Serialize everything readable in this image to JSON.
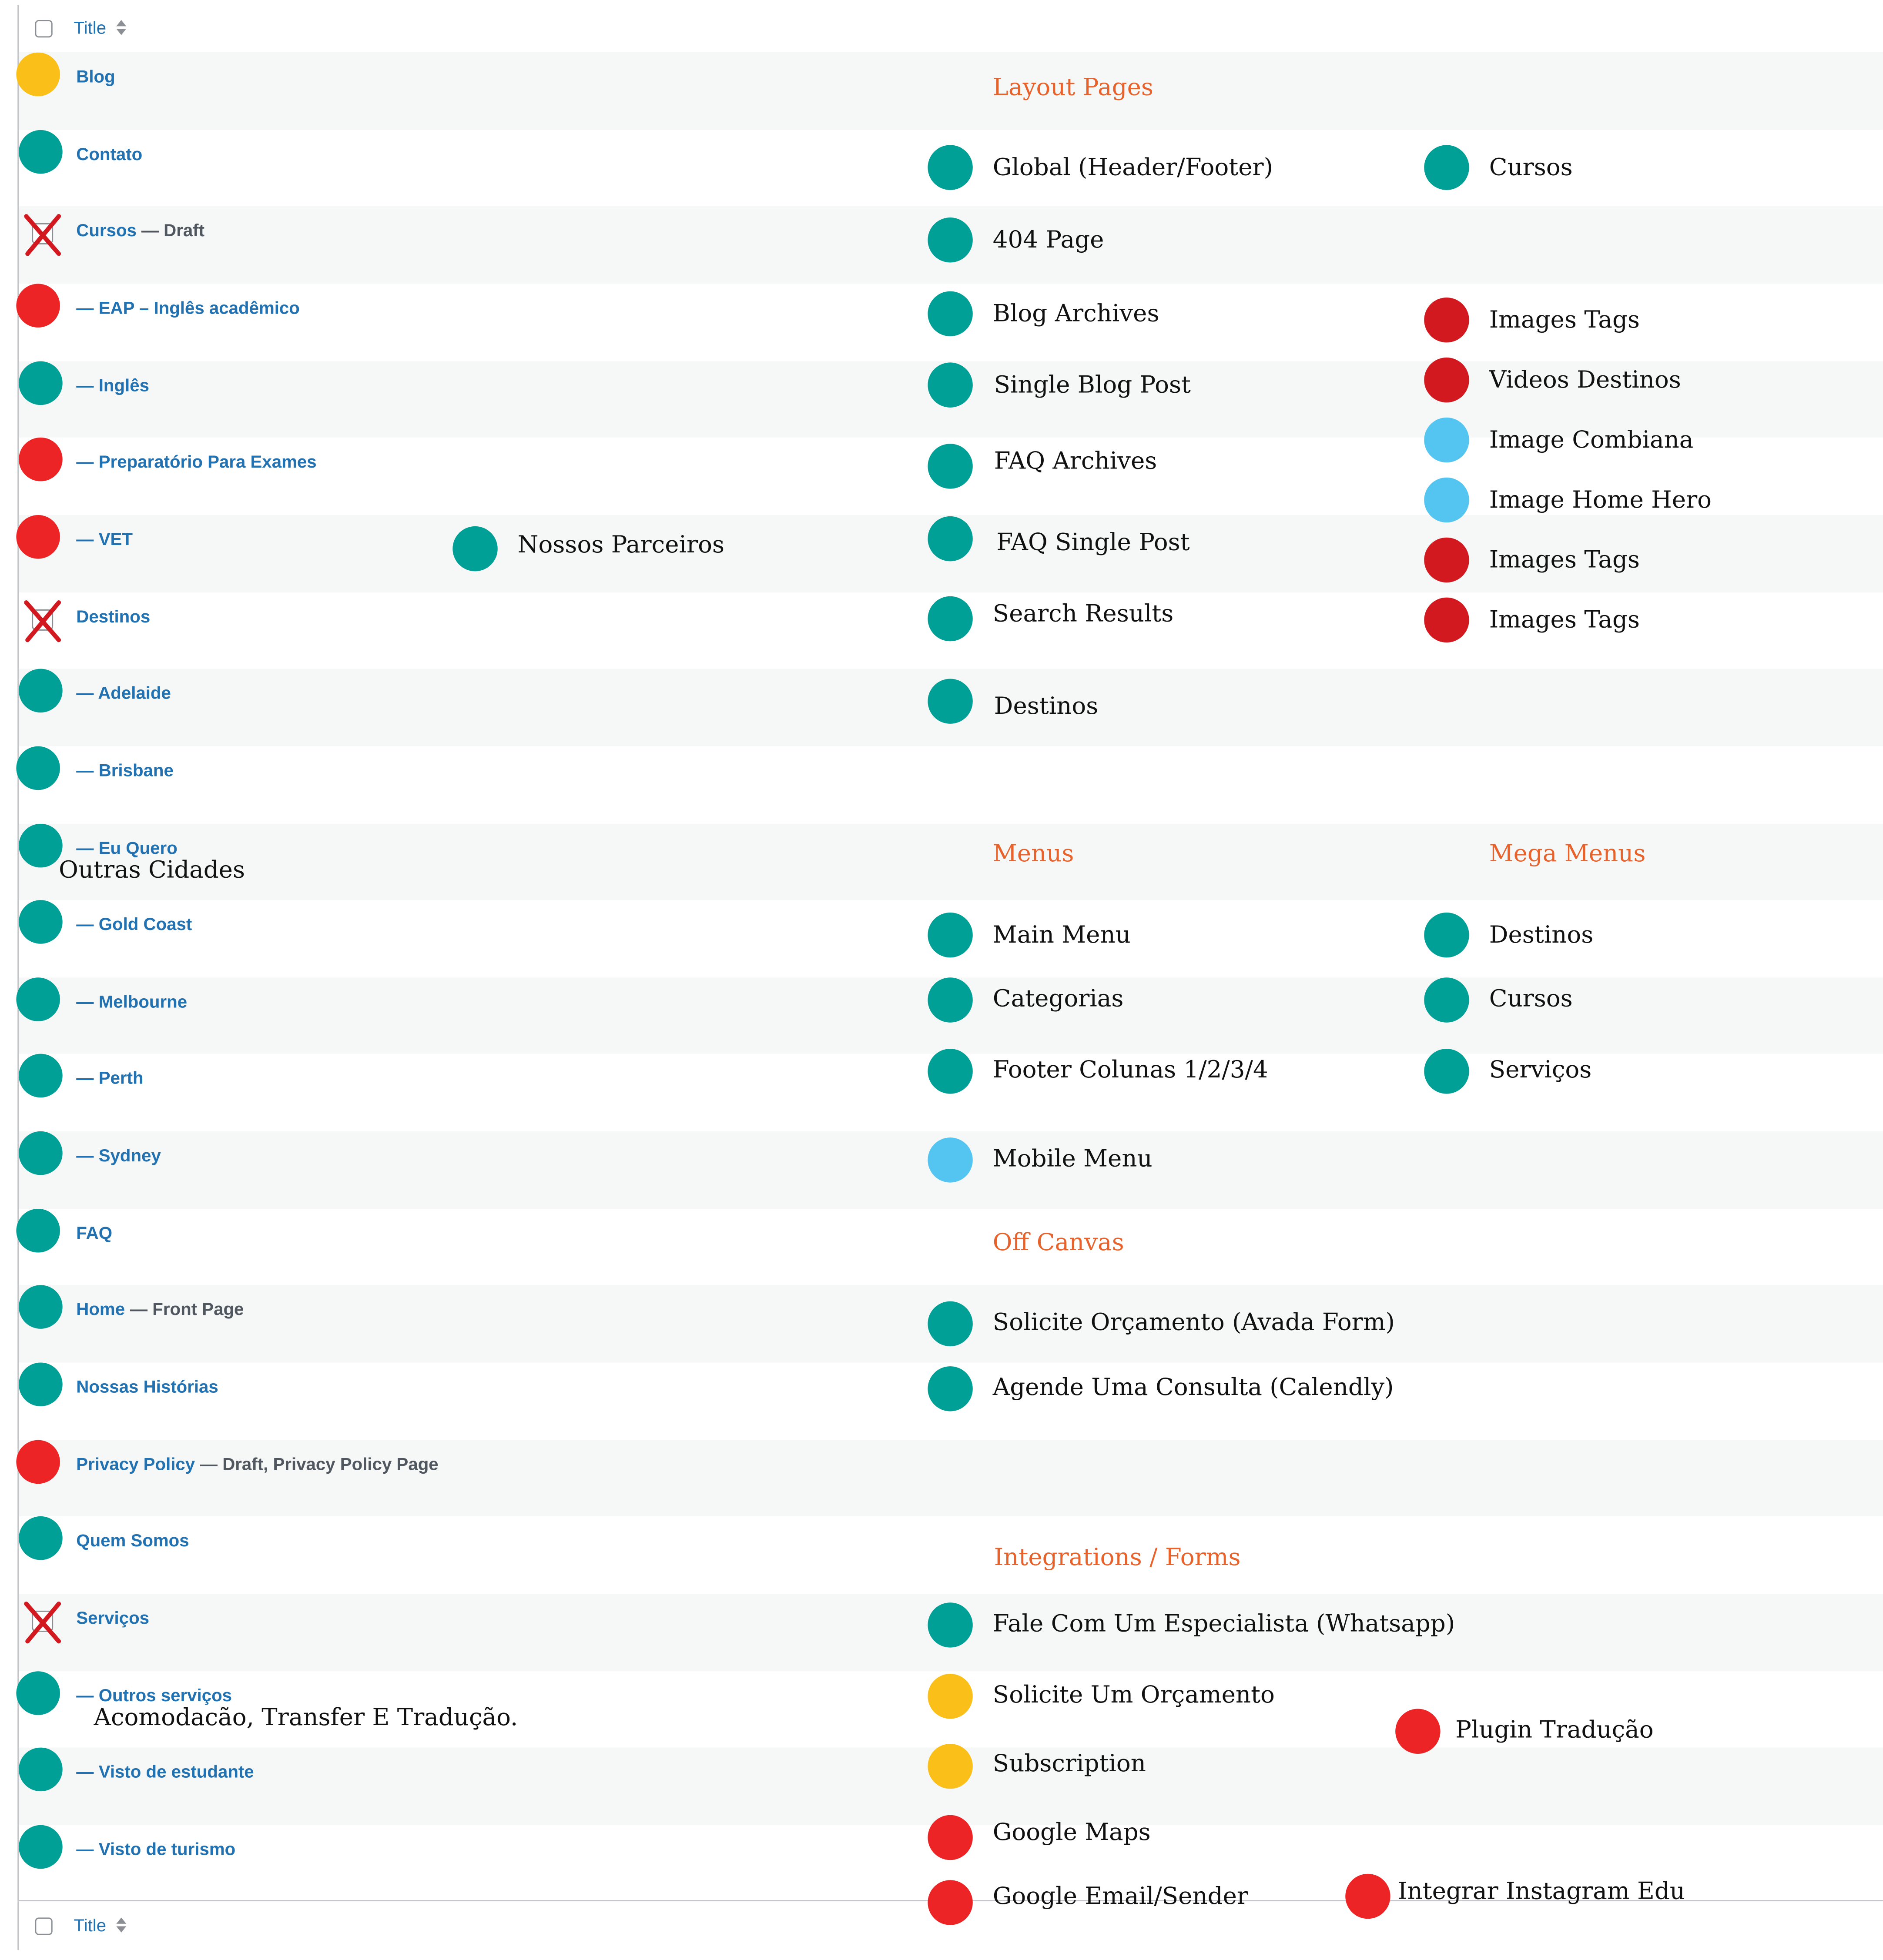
{
  "colors": {
    "teal": "#00a096",
    "red": "#ec2426",
    "darkred": "#d2191f",
    "yellow": "#fbbf1a",
    "lightblue": "#53c5f0",
    "link": "#2271b1",
    "heading": "#e8622c"
  },
  "table": {
    "header_title": "Title",
    "footer_title": "Title",
    "rows": [
      {
        "title": "Blog",
        "state": "",
        "status": "yellow-dot-icon"
      },
      {
        "title": "Contato",
        "state": "",
        "status": "teal-dot-icon"
      },
      {
        "title": "Cursos",
        "state": "— Draft",
        "status": "x-icon"
      },
      {
        "title": "— EAP – Inglês acadêmico",
        "state": "",
        "status": "red-dot-icon"
      },
      {
        "title": "— Inglês",
        "state": "",
        "status": "teal-dot-icon"
      },
      {
        "title": "— Preparatório Para Exames",
        "state": "",
        "status": "red-dot-icon"
      },
      {
        "title": "— VET",
        "state": "",
        "status": "red-dot-icon"
      },
      {
        "title": "Destinos",
        "state": "",
        "status": "x-icon"
      },
      {
        "title": "— Adelaide",
        "state": "",
        "status": "teal-dot-icon"
      },
      {
        "title": "— Brisbane",
        "state": "",
        "status": "teal-dot-icon"
      },
      {
        "title": "— Eu Quero",
        "state": "",
        "status": "teal-dot-icon"
      },
      {
        "title": "— Gold Coast",
        "state": "",
        "status": "teal-dot-icon"
      },
      {
        "title": "— Melbourne",
        "state": "",
        "status": "teal-dot-icon"
      },
      {
        "title": "— Perth",
        "state": "",
        "status": "teal-dot-icon"
      },
      {
        "title": "— Sydney",
        "state": "",
        "status": "teal-dot-icon"
      },
      {
        "title": "FAQ",
        "state": "",
        "status": "teal-dot-icon"
      },
      {
        "title": "Home",
        "state": "— Front Page",
        "status": "teal-dot-icon"
      },
      {
        "title": "Nossas Histórias",
        "state": "",
        "status": "teal-dot-icon"
      },
      {
        "title": "Privacy Policy",
        "state": "— Draft, Privacy Policy Page",
        "status": "red-dot-icon"
      },
      {
        "title": "Quem Somos",
        "state": "",
        "status": "teal-dot-icon"
      },
      {
        "title": "Serviços",
        "state": "",
        "status": "x-icon"
      },
      {
        "title": "— Outros serviços",
        "state": "",
        "status": "teal-dot-icon"
      },
      {
        "title": "— Visto de estudante",
        "state": "",
        "status": "teal-dot-icon"
      },
      {
        "title": "— Visto de turismo",
        "state": "",
        "status": "teal-dot-icon"
      }
    ]
  },
  "annotations": {
    "nossos_parceiros": "Nossos Parceiros",
    "outras_cidades": "Outras Cidades",
    "outros_servicos_note": "Acomodacão, Transfer E Tradução.",
    "layout_pages_heading": "Layout Pages",
    "layout_pages": [
      "Global (Header/Footer)",
      "404 Page",
      "Blog Archives",
      "Single Blog Post",
      "FAQ  Archives",
      "FAQ  Single Post",
      "Search Results",
      "Destinos"
    ],
    "layout_right": [
      "Cursos",
      "Images Tags",
      "Videos Destinos",
      "Image Combiana",
      "Image Home Hero",
      "Images Tags",
      "Images Tags"
    ],
    "menus_heading": "Menus",
    "menus": [
      "Main Menu",
      "Categorias",
      "Footer Colunas 1/2/3/4",
      "Mobile Menu"
    ],
    "mega_menus_heading": "Mega Menus",
    "mega_menus": [
      "Destinos",
      "Cursos",
      "Serviços"
    ],
    "off_canvas_heading": "Off Canvas",
    "off_canvas": [
      "Solicite Orçamento (Avada Form)",
      "Agende Uma Consulta (Calendly)"
    ],
    "integrations_heading": "Integrations / Forms",
    "integrations": [
      "Fale Com Um Especialista (Whatsapp)",
      "Solicite Um Orçamento",
      "Subscription",
      "Google Maps",
      "Google Email/Sender"
    ],
    "plugin_traducao": "Plugin Tradução",
    "integrar_instagram": "Integrar Instagram Edu"
  }
}
